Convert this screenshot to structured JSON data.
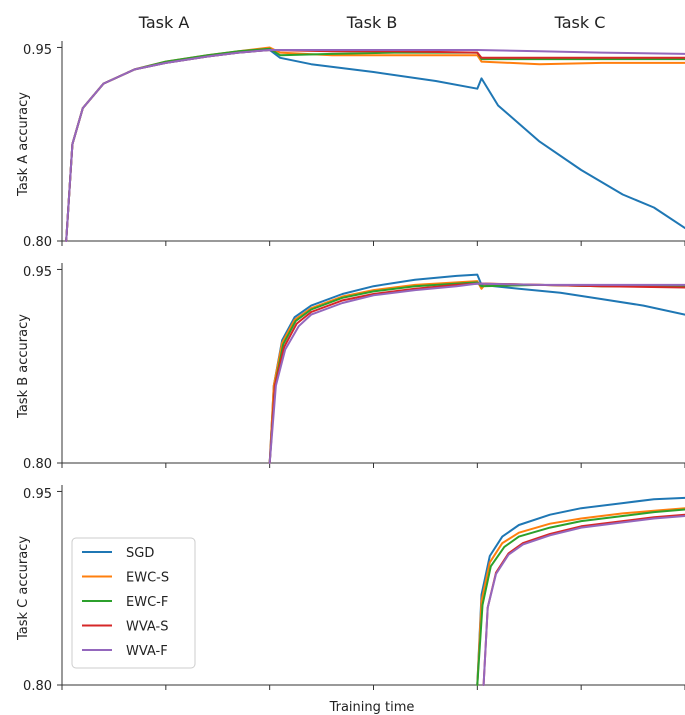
{
  "chart_data": {
    "type": "line",
    "task_labels": [
      "Task A",
      "Task B",
      "Task C"
    ],
    "xlabel": "Training time",
    "x_range": [
      0,
      3
    ],
    "colors": {
      "SGD": "#1f77b4",
      "EWC-S": "#ff7f0e",
      "EWC-F": "#2ca02c",
      "WVA-S": "#d62728",
      "WVA-F": "#9467bd"
    },
    "legend": {
      "placement": "lower-left of bottom panel",
      "entries": [
        "SGD",
        "EWC-S",
        "EWC-F",
        "WVA-S",
        "WVA-F"
      ]
    },
    "panels": [
      {
        "ylabel": "Task A accuracy",
        "ylim": [
          0.8,
          0.955
        ],
        "yticks": [
          "0.80",
          "0.95"
        ],
        "series": [
          {
            "name": "SGD",
            "points": [
              [
                0.02,
                0.8
              ],
              [
                0.05,
                0.875
              ],
              [
                0.1,
                0.903
              ],
              [
                0.2,
                0.922
              ],
              [
                0.35,
                0.933
              ],
              [
                0.5,
                0.938
              ],
              [
                0.7,
                0.943
              ],
              [
                0.85,
                0.946
              ],
              [
                1.0,
                0.948
              ],
              [
                1.05,
                0.942
              ],
              [
                1.2,
                0.937
              ],
              [
                1.5,
                0.931
              ],
              [
                1.8,
                0.924
              ],
              [
                2.0,
                0.918
              ],
              [
                2.02,
                0.926
              ],
              [
                2.1,
                0.905
              ],
              [
                2.3,
                0.877
              ],
              [
                2.5,
                0.855
              ],
              [
                2.7,
                0.836
              ],
              [
                2.85,
                0.826
              ],
              [
                3.0,
                0.81
              ]
            ]
          },
          {
            "name": "EWC-S",
            "points": [
              [
                0.02,
                0.8
              ],
              [
                0.05,
                0.875
              ],
              [
                0.1,
                0.903
              ],
              [
                0.2,
                0.922
              ],
              [
                0.35,
                0.933
              ],
              [
                0.5,
                0.939
              ],
              [
                0.7,
                0.944
              ],
              [
                0.85,
                0.947
              ],
              [
                1.0,
                0.95
              ],
              [
                1.05,
                0.946
              ],
              [
                1.3,
                0.944
              ],
              [
                1.6,
                0.944
              ],
              [
                2.0,
                0.944
              ],
              [
                2.02,
                0.939
              ],
              [
                2.3,
                0.937
              ],
              [
                2.6,
                0.938
              ],
              [
                3.0,
                0.938
              ]
            ]
          },
          {
            "name": "EWC-F",
            "points": [
              [
                0.02,
                0.8
              ],
              [
                0.05,
                0.875
              ],
              [
                0.1,
                0.903
              ],
              [
                0.2,
                0.922
              ],
              [
                0.35,
                0.933
              ],
              [
                0.5,
                0.939
              ],
              [
                0.7,
                0.944
              ],
              [
                0.85,
                0.947
              ],
              [
                1.0,
                0.949
              ],
              [
                1.05,
                0.944
              ],
              [
                1.3,
                0.945
              ],
              [
                1.6,
                0.946
              ],
              [
                2.0,
                0.946
              ],
              [
                2.02,
                0.941
              ],
              [
                2.3,
                0.941
              ],
              [
                2.6,
                0.941
              ],
              [
                3.0,
                0.941
              ]
            ]
          },
          {
            "name": "WVA-S",
            "points": [
              [
                0.02,
                0.8
              ],
              [
                0.05,
                0.875
              ],
              [
                0.1,
                0.903
              ],
              [
                0.2,
                0.922
              ],
              [
                0.35,
                0.933
              ],
              [
                0.5,
                0.938
              ],
              [
                0.7,
                0.943
              ],
              [
                0.85,
                0.946
              ],
              [
                1.0,
                0.948
              ],
              [
                1.3,
                0.947
              ],
              [
                1.6,
                0.947
              ],
              [
                2.0,
                0.946
              ],
              [
                2.02,
                0.942
              ],
              [
                2.5,
                0.942
              ],
              [
                3.0,
                0.942
              ]
            ]
          },
          {
            "name": "WVA-F",
            "points": [
              [
                0.02,
                0.8
              ],
              [
                0.05,
                0.875
              ],
              [
                0.1,
                0.903
              ],
              [
                0.2,
                0.922
              ],
              [
                0.35,
                0.933
              ],
              [
                0.5,
                0.938
              ],
              [
                0.7,
                0.943
              ],
              [
                0.85,
                0.946
              ],
              [
                1.0,
                0.948
              ],
              [
                1.3,
                0.948
              ],
              [
                1.6,
                0.948
              ],
              [
                2.0,
                0.948
              ],
              [
                2.3,
                0.947
              ],
              [
                2.6,
                0.946
              ],
              [
                3.0,
                0.945
              ]
            ]
          }
        ]
      },
      {
        "ylabel": "Task B accuracy",
        "ylim": [
          0.8,
          0.955
        ],
        "yticks": [
          "0.80",
          "0.95"
        ],
        "series": [
          {
            "name": "SGD",
            "points": [
              [
                1.0,
                0.8
              ],
              [
                1.02,
                0.86
              ],
              [
                1.06,
                0.895
              ],
              [
                1.12,
                0.913
              ],
              [
                1.2,
                0.922
              ],
              [
                1.35,
                0.931
              ],
              [
                1.5,
                0.937
              ],
              [
                1.7,
                0.942
              ],
              [
                1.9,
                0.945
              ],
              [
                2.0,
                0.946
              ],
              [
                2.02,
                0.938
              ],
              [
                2.2,
                0.935
              ],
              [
                2.4,
                0.932
              ],
              [
                2.6,
                0.927
              ],
              [
                2.8,
                0.922
              ],
              [
                3.0,
                0.915
              ]
            ]
          },
          {
            "name": "EWC-S",
            "points": [
              [
                1.0,
                0.8
              ],
              [
                1.02,
                0.86
              ],
              [
                1.06,
                0.893
              ],
              [
                1.12,
                0.911
              ],
              [
                1.2,
                0.92
              ],
              [
                1.35,
                0.929
              ],
              [
                1.5,
                0.934
              ],
              [
                1.7,
                0.938
              ],
              [
                1.9,
                0.94
              ],
              [
                2.0,
                0.941
              ],
              [
                2.02,
                0.935
              ],
              [
                2.04,
                0.939
              ],
              [
                2.3,
                0.938
              ],
              [
                2.6,
                0.937
              ],
              [
                3.0,
                0.937
              ]
            ]
          },
          {
            "name": "EWC-F",
            "points": [
              [
                1.0,
                0.8
              ],
              [
                1.025,
                0.86
              ],
              [
                1.065,
                0.892
              ],
              [
                1.125,
                0.91
              ],
              [
                1.2,
                0.919
              ],
              [
                1.35,
                0.928
              ],
              [
                1.5,
                0.933
              ],
              [
                1.7,
                0.937
              ],
              [
                1.9,
                0.939
              ],
              [
                2.0,
                0.94
              ],
              [
                2.02,
                0.937
              ],
              [
                2.3,
                0.938
              ],
              [
                2.6,
                0.937
              ],
              [
                3.0,
                0.937
              ]
            ]
          },
          {
            "name": "WVA-S",
            "points": [
              [
                1.0,
                0.8
              ],
              [
                1.025,
                0.86
              ],
              [
                1.07,
                0.89
              ],
              [
                1.13,
                0.908
              ],
              [
                1.2,
                0.917
              ],
              [
                1.35,
                0.926
              ],
              [
                1.5,
                0.931
              ],
              [
                1.7,
                0.935
              ],
              [
                1.9,
                0.938
              ],
              [
                2.0,
                0.939
              ],
              [
                2.03,
                0.939
              ],
              [
                2.3,
                0.938
              ],
              [
                2.6,
                0.937
              ],
              [
                3.0,
                0.936
              ]
            ]
          },
          {
            "name": "WVA-F",
            "points": [
              [
                1.0,
                0.8
              ],
              [
                1.03,
                0.86
              ],
              [
                1.075,
                0.888
              ],
              [
                1.14,
                0.906
              ],
              [
                1.2,
                0.915
              ],
              [
                1.35,
                0.924
              ],
              [
                1.5,
                0.93
              ],
              [
                1.7,
                0.934
              ],
              [
                1.9,
                0.937
              ],
              [
                2.0,
                0.939
              ],
              [
                2.3,
                0.938
              ],
              [
                2.6,
                0.938
              ],
              [
                3.0,
                0.938
              ]
            ]
          }
        ]
      },
      {
        "ylabel": "Task C accuracy",
        "ylim": [
          0.8,
          0.955
        ],
        "yticks": [
          "0.80",
          "0.95"
        ],
        "series": [
          {
            "name": "SGD",
            "points": [
              [
                2.0,
                0.8
              ],
              [
                2.02,
                0.87
              ],
              [
                2.06,
                0.9
              ],
              [
                2.12,
                0.915
              ],
              [
                2.2,
                0.924
              ],
              [
                2.35,
                0.932
              ],
              [
                2.5,
                0.937
              ],
              [
                2.7,
                0.941
              ],
              [
                2.85,
                0.944
              ],
              [
                3.0,
                0.945
              ]
            ]
          },
          {
            "name": "EWC-S",
            "points": [
              [
                2.0,
                0.8
              ],
              [
                2.02,
                0.865
              ],
              [
                2.06,
                0.895
              ],
              [
                2.12,
                0.91
              ],
              [
                2.2,
                0.918
              ],
              [
                2.35,
                0.925
              ],
              [
                2.5,
                0.929
              ],
              [
                2.7,
                0.933
              ],
              [
                2.85,
                0.935
              ],
              [
                3.0,
                0.937
              ]
            ]
          },
          {
            "name": "EWC-F",
            "points": [
              [
                2.0,
                0.8
              ],
              [
                2.025,
                0.862
              ],
              [
                2.065,
                0.892
              ],
              [
                2.13,
                0.907
              ],
              [
                2.2,
                0.915
              ],
              [
                2.35,
                0.922
              ],
              [
                2.5,
                0.927
              ],
              [
                2.7,
                0.931
              ],
              [
                2.85,
                0.934
              ],
              [
                3.0,
                0.936
              ]
            ]
          },
          {
            "name": "WVA-S",
            "points": [
              [
                2.03,
                0.8
              ],
              [
                2.05,
                0.86
              ],
              [
                2.09,
                0.887
              ],
              [
                2.15,
                0.902
              ],
              [
                2.22,
                0.91
              ],
              [
                2.35,
                0.917
              ],
              [
                2.5,
                0.923
              ],
              [
                2.7,
                0.927
              ],
              [
                2.85,
                0.93
              ],
              [
                3.0,
                0.932
              ]
            ]
          },
          {
            "name": "WVA-F",
            "points": [
              [
                2.03,
                0.8
              ],
              [
                2.05,
                0.86
              ],
              [
                2.09,
                0.886
              ],
              [
                2.15,
                0.901
              ],
              [
                2.22,
                0.909
              ],
              [
                2.35,
                0.916
              ],
              [
                2.5,
                0.922
              ],
              [
                2.7,
                0.926
              ],
              [
                2.85,
                0.929
              ],
              [
                3.0,
                0.931
              ]
            ]
          }
        ]
      }
    ]
  }
}
